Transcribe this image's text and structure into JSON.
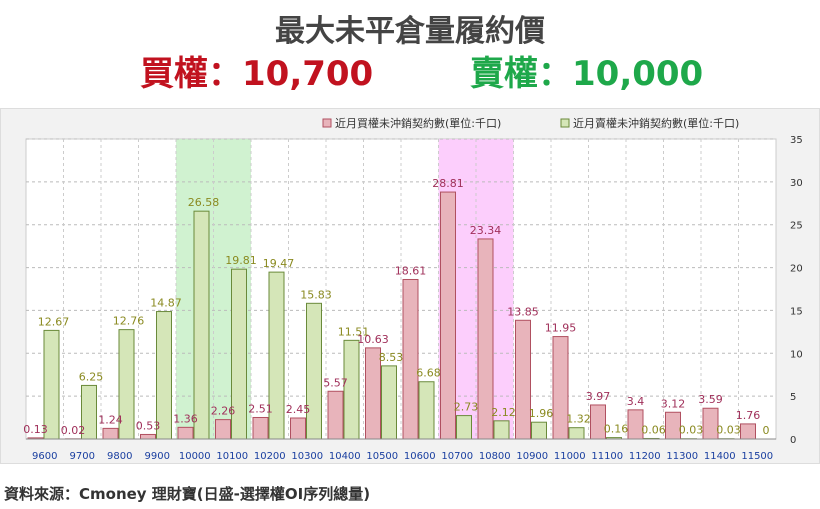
{
  "title": "最大未平倉量履約價",
  "call_headline": "買權：10,700",
  "put_headline": "賣權：10,000",
  "source_text": "資料來源：Cmoney 理財寶(日盛-選擇權OI序列總量)",
  "colors": {
    "call_bar": "#e8b4bb",
    "call_border": "#b05060",
    "call_label": "#a0305a",
    "put_bar": "#d5e6b8",
    "put_border": "#6a8a3a",
    "put_label": "#8a8a20",
    "put_highlight": "#c8f0c8",
    "call_highlight": "#fbc6fb",
    "call_headline": "#c1121f",
    "put_headline": "#1ea84a"
  },
  "chart_data": {
    "type": "bar",
    "categories": [
      "9600",
      "9700",
      "9800",
      "9900",
      "10000",
      "10100",
      "10200",
      "10300",
      "10400",
      "10500",
      "10600",
      "10700",
      "10800",
      "10900",
      "11000",
      "11100",
      "11200",
      "11300",
      "11400",
      "11500"
    ],
    "series": [
      {
        "name": "近月買權未沖銷契約數(單位:千口)",
        "values": [
          0.13,
          0.02,
          1.24,
          0.53,
          1.36,
          2.26,
          2.51,
          2.45,
          5.57,
          10.63,
          18.61,
          28.81,
          23.34,
          13.85,
          11.95,
          3.97,
          3.4,
          3.12,
          3.59,
          1.76
        ]
      },
      {
        "name": "近月賣權未沖銷契約數(單位:千口)",
        "values": [
          12.67,
          6.25,
          12.76,
          14.87,
          26.58,
          19.81,
          19.47,
          15.83,
          11.51,
          8.53,
          6.68,
          2.73,
          2.12,
          1.96,
          1.32,
          0.16,
          0.06,
          0.03,
          0.03,
          0
        ]
      }
    ],
    "ylim": [
      0,
      35
    ],
    "yticks": [
      0,
      5,
      10,
      15,
      20,
      25,
      30,
      35
    ],
    "highlight_put": [
      "10000",
      "10100"
    ],
    "highlight_call": [
      "10700",
      "10800"
    ],
    "grid": true,
    "legend": "top-right"
  }
}
